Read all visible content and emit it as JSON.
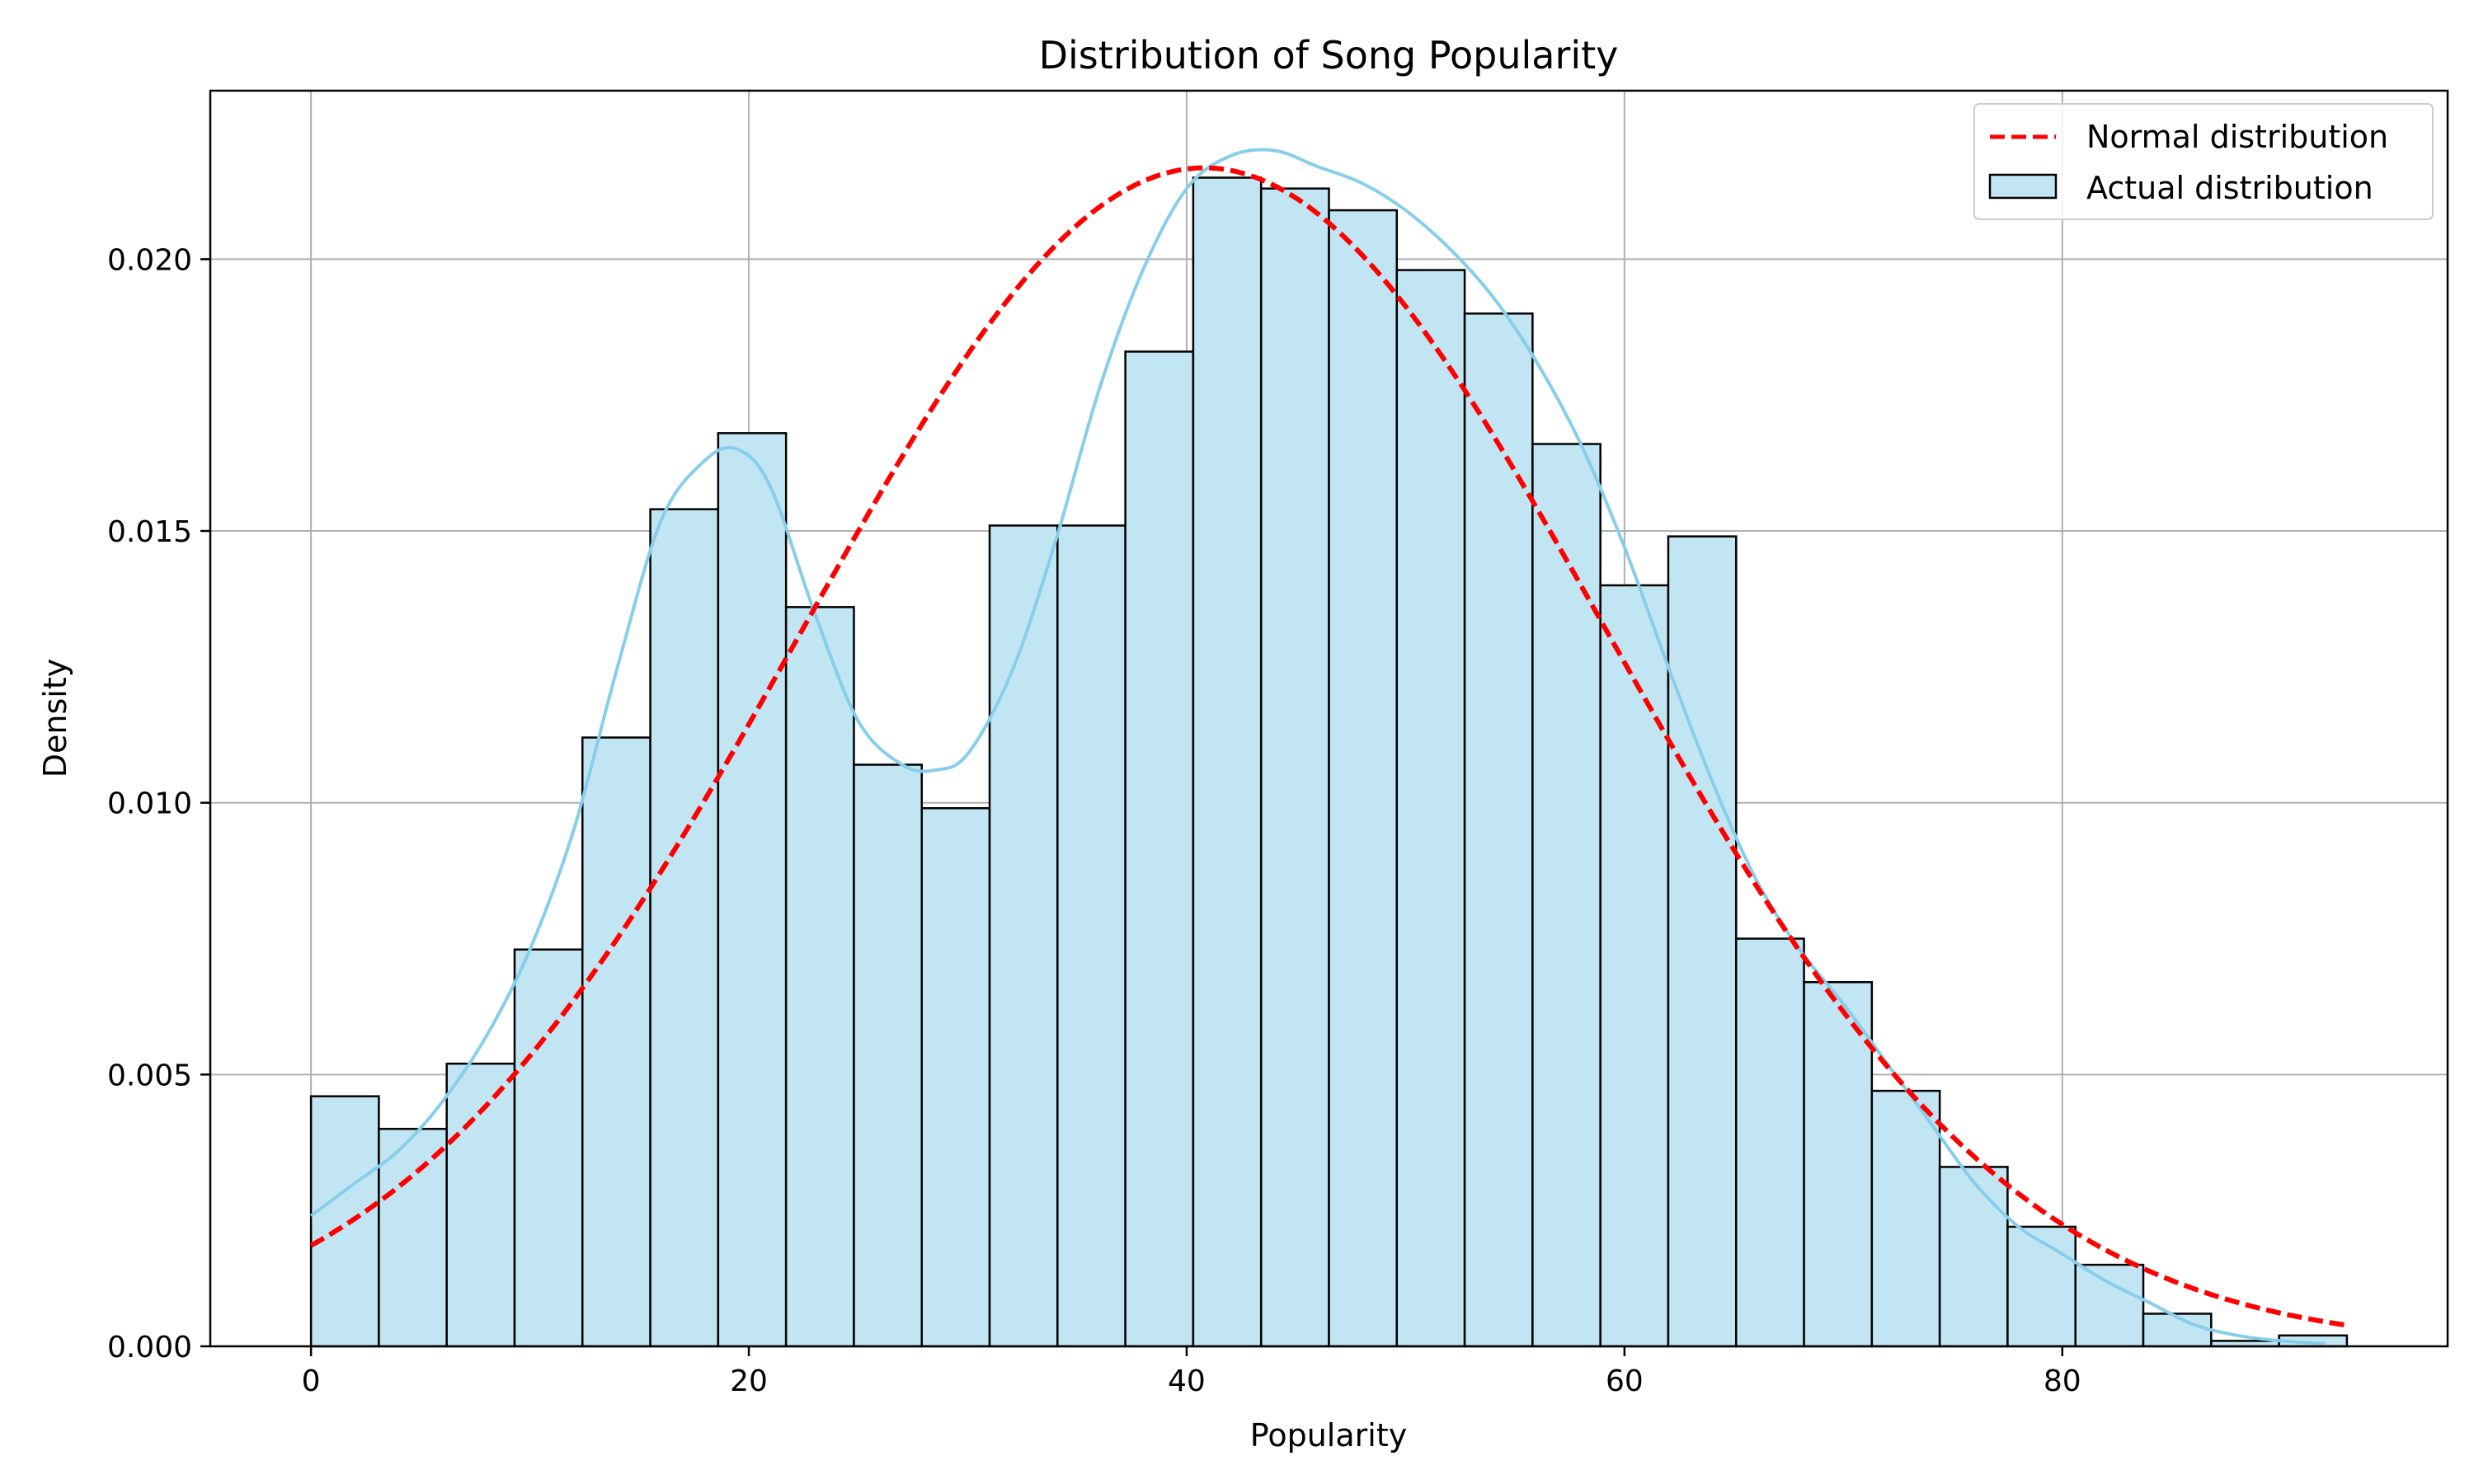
{
  "chart_data": {
    "type": "bar",
    "title": "Distribution of Song Popularity",
    "xlabel": "Popularity",
    "ylabel": "Density",
    "xlim": [
      -4.6,
      97.6
    ],
    "ylim": [
      0,
      0.0231
    ],
    "xticks": [
      0,
      20,
      40,
      60,
      80
    ],
    "yticks": [
      0.0,
      0.005,
      0.01,
      0.015,
      0.02
    ],
    "ytick_labels": [
      "0.000",
      "0.005",
      "0.010",
      "0.015",
      "0.020"
    ],
    "grid": true,
    "legend_position": "top-right",
    "bin_edges": [
      0,
      3.1,
      6.2,
      9.3,
      12.4,
      15.5,
      18.6,
      21.7,
      24.8,
      27.9,
      31.0,
      34.1,
      37.2,
      40.3,
      43.4,
      46.5,
      49.6,
      52.7,
      55.8,
      58.9,
      62.0,
      65.1,
      68.2,
      71.3,
      74.4,
      77.5,
      80.6,
      83.7,
      86.8,
      89.9,
      93.0
    ],
    "series": [
      {
        "name": "Actual distribution",
        "kind": "histogram",
        "color": "#87ceeb",
        "values": [
          0.0046,
          0.004,
          0.0052,
          0.0073,
          0.0112,
          0.0154,
          0.0168,
          0.0136,
          0.0107,
          0.0099,
          0.0151,
          0.0151,
          0.0183,
          0.0215,
          0.0213,
          0.0209,
          0.0198,
          0.019,
          0.0166,
          0.014,
          0.0149,
          0.0075,
          0.0067,
          0.0047,
          0.0033,
          0.0022,
          0.0015,
          0.0006,
          0.0001,
          0.0002
        ]
      },
      {
        "name": "Actual distribution KDE",
        "kind": "kde",
        "color": "#87ceeb",
        "x": [
          0,
          2,
          4,
          6,
          8,
          10,
          12,
          14,
          16,
          18,
          19.5,
          21,
          23,
          25,
          27,
          28.5,
          30,
          32,
          34,
          36,
          38,
          40,
          42,
          44,
          46,
          48,
          50,
          52,
          54,
          56,
          58,
          60,
          62,
          64,
          66,
          68,
          70,
          72,
          74,
          76,
          78,
          80,
          82,
          84,
          86,
          88,
          90,
          92
        ],
        "y": [
          0.0024,
          0.003,
          0.0036,
          0.0045,
          0.0057,
          0.0073,
          0.0095,
          0.0125,
          0.0152,
          0.0163,
          0.0165,
          0.0158,
          0.0135,
          0.0115,
          0.0107,
          0.0106,
          0.0109,
          0.0124,
          0.0148,
          0.0176,
          0.0198,
          0.0213,
          0.0219,
          0.022,
          0.0217,
          0.0214,
          0.0209,
          0.0202,
          0.0193,
          0.0181,
          0.0166,
          0.0147,
          0.0125,
          0.0104,
          0.0086,
          0.0073,
          0.0063,
          0.0052,
          0.0041,
          0.003,
          0.0022,
          0.0017,
          0.0012,
          0.0008,
          0.0004,
          0.0002,
          0.0001,
          5e-05
        ]
      },
      {
        "name": "Normal distribution",
        "kind": "line",
        "style": "dashed",
        "color": "#ff0000",
        "mean": 40.8,
        "std": 18.4
      }
    ],
    "legend": [
      {
        "label": "Normal distribution",
        "kind": "dashed-line",
        "color": "#ff0000"
      },
      {
        "label": "Actual distribution",
        "kind": "patch",
        "color": "#c2e5f3"
      }
    ]
  }
}
